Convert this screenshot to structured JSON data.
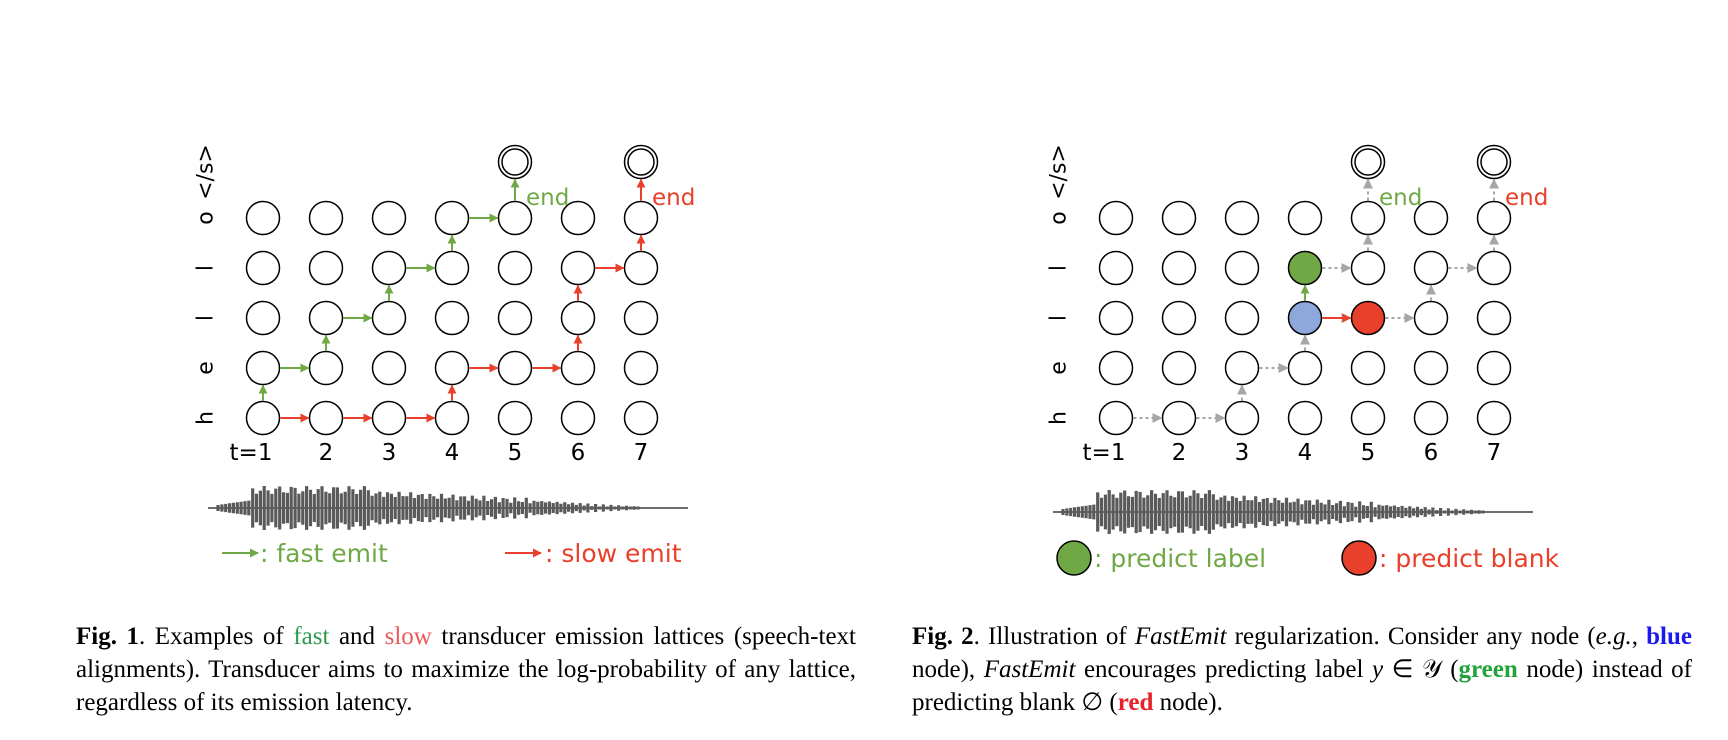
{
  "colors": {
    "fast": "#70a846",
    "slow": "#e8402a",
    "blue_node": "#8fa8dc",
    "green_node": "#70a846",
    "red_node": "#e8402a",
    "gray_arrow": "#a6a6a6",
    "cap_fast": "#2e9a4a",
    "cap_slow": "#e85a5a",
    "cap_blue": "#1a1aee",
    "cap_green": "#22a33a",
    "cap_red": "#e8202a"
  },
  "token_labels": [
    "h",
    "e",
    "l",
    "l",
    "o",
    "</s>"
  ],
  "time_labels": [
    "t=1",
    "2",
    "3",
    "4",
    "5",
    "6",
    "7"
  ],
  "fig1": {
    "end_label": "end",
    "legend_fast": ": fast emit",
    "legend_slow": ": slow emit",
    "fast_path": [
      [
        1,
        0
      ],
      [
        1,
        1
      ],
      [
        2,
        1
      ],
      [
        2,
        2
      ],
      [
        3,
        2
      ],
      [
        3,
        3
      ],
      [
        4,
        3
      ],
      [
        4,
        4
      ],
      [
        5,
        4
      ],
      [
        5,
        5
      ]
    ],
    "slow_path": [
      [
        1,
        0
      ],
      [
        2,
        0
      ],
      [
        3,
        0
      ],
      [
        4,
        0
      ],
      [
        4,
        1
      ],
      [
        5,
        1
      ],
      [
        6,
        1
      ],
      [
        6,
        2
      ],
      [
        6,
        3
      ],
      [
        7,
        3
      ],
      [
        7,
        4
      ],
      [
        7,
        5
      ]
    ]
  },
  "fig2": {
    "end_label": "end",
    "legend_label": ": predict label",
    "legend_blank": ": predict blank",
    "path": [
      [
        1,
        0
      ],
      [
        2,
        0
      ],
      [
        3,
        0
      ],
      [
        3,
        1
      ],
      [
        4,
        1
      ],
      [
        4,
        2
      ],
      [
        5,
        2
      ],
      [
        6,
        2
      ],
      [
        6,
        3
      ],
      [
        7,
        3
      ],
      [
        7,
        4
      ],
      [
        7,
        5
      ]
    ],
    "branch": [
      [
        4,
        3
      ],
      [
        5,
        3
      ],
      [
        5,
        4
      ],
      [
        5,
        5
      ]
    ],
    "blue_node": [
      4,
      2
    ],
    "green_node": [
      4,
      3
    ],
    "red_node": [
      5,
      2
    ]
  },
  "captions": {
    "fig1": {
      "label": "Fig. 1",
      "t1": ".   Examples of ",
      "fast": "fast",
      "t2": " and ",
      "slow": "slow",
      "t3": " transducer emission lattices (speech-text alignments).  Transducer aims to maximize the log-probability of any lattice, regardless of its emission latency."
    },
    "fig2": {
      "label": "Fig. 2",
      "t1": ".  Illustration of ",
      "fe1": "FastEmit",
      "t2": " regularization.  Consider any node (",
      "eg": "e.g.",
      "t3": ", ",
      "blue": "blue",
      "t4": " node), ",
      "fe2": "FastEmit",
      "t5": " encourages predicting label ",
      "y": "y",
      "t6": " ∈ ",
      "ycal": "𝒴",
      "t7": " (",
      "green": "green",
      "t8": " node) instead of predicting blank ∅ (",
      "red": "red",
      "t9": " node)."
    }
  }
}
